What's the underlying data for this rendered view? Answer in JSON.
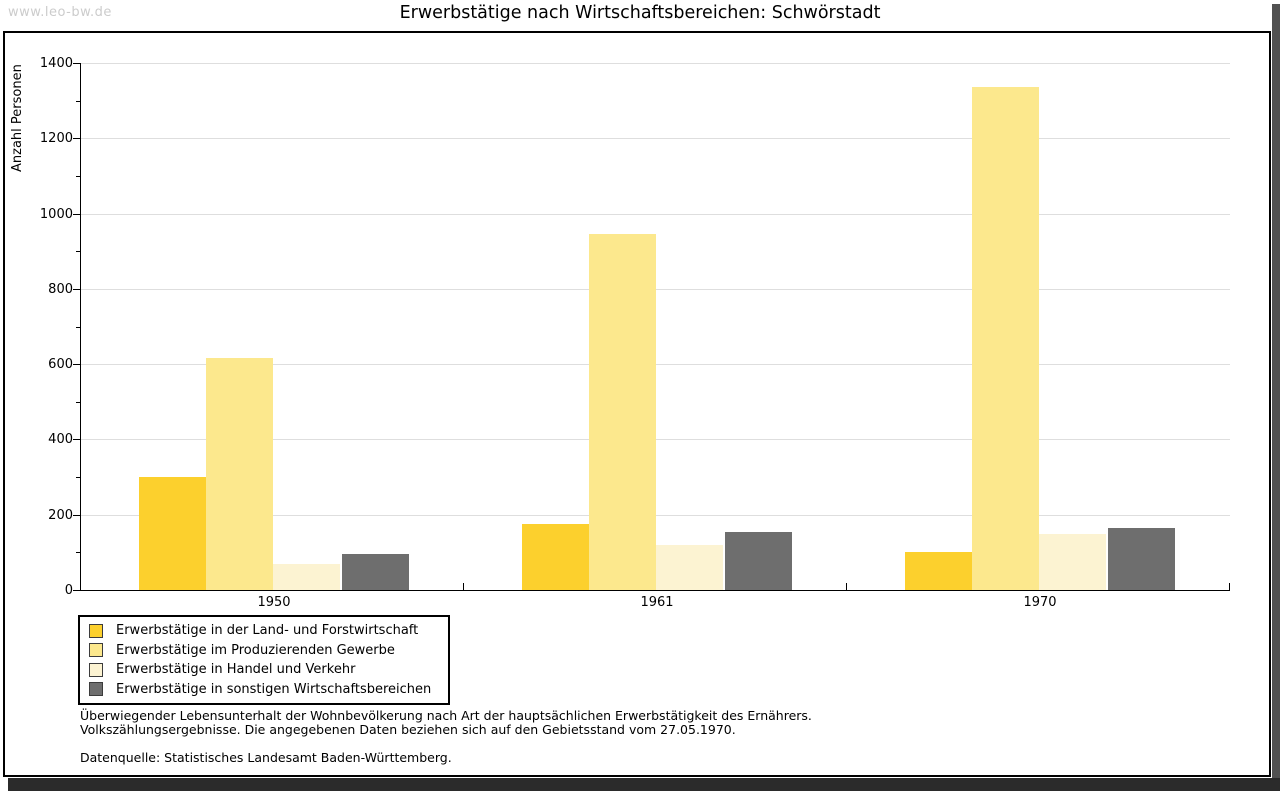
{
  "watermark": "www.leo-bw.de",
  "title": "Erwerbstätige nach Wirtschaftsbereichen: Schwörstadt",
  "chart_data": {
    "type": "bar",
    "title": "Erwerbstätige nach Wirtschaftsbereichen: Schwörstadt",
    "xlabel": "",
    "ylabel": "Anzahl Personen",
    "categories": [
      "1950",
      "1961",
      "1970"
    ],
    "series": [
      {
        "name": "Erwerbstätige in der Land- und Forstwirtschaft",
        "color": "#fcd02d",
        "values": [
          300,
          175,
          100
        ]
      },
      {
        "name": "Erwerbstätige im Produzierenden Gewerbe",
        "color": "#fce88d",
        "values": [
          615,
          945,
          1335
        ]
      },
      {
        "name": "Erwerbstätige in Handel und Verkehr",
        "color": "#fcf3d2",
        "values": [
          70,
          120,
          150
        ]
      },
      {
        "name": "Erwerbstätige in sonstigen Wirtschaftsbereichen",
        "color": "#6e6e6e",
        "values": [
          95,
          155,
          165
        ]
      }
    ],
    "ylim": [
      0,
      1400
    ],
    "ytick_step": 200,
    "yminor_step": 100,
    "grid": true,
    "legend_position": "bottom-left",
    "gridline_color": "#dedede"
  },
  "footnotes": {
    "line1": "Überwiegender Lebensunterhalt der Wohnbevölkerung nach Art der hauptsächlichen Erwerbstätigkeit des Ernährers.",
    "line2": "Volkszählungsergebnisse. Die angegebenen Daten beziehen sich auf den Gebietsstand vom 27.05.1970.",
    "source": "Datenquelle: Statistisches Landesamt Baden-Württemberg."
  }
}
